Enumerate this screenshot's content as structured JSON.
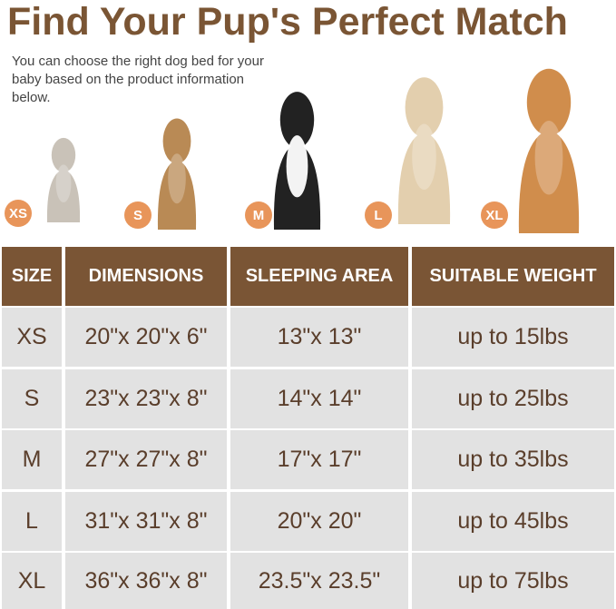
{
  "title": "Find Your Pup's Perfect Match",
  "subtitle": "You can choose the right dog bed for your baby based on the product information below.",
  "pets": [
    {
      "size": "XS",
      "animal": "cat",
      "color": "#c9c2b8"
    },
    {
      "size": "S",
      "animal": "french-bulldog",
      "color": "#b98a55"
    },
    {
      "size": "M",
      "animal": "border-collie",
      "color": "#222222"
    },
    {
      "size": "L",
      "animal": "golden-retriever-light",
      "color": "#e3cfae"
    },
    {
      "size": "XL",
      "animal": "golden-retriever",
      "color": "#d08d4c"
    }
  ],
  "colors": {
    "brand": "#7a5535",
    "badge": "#e8955a",
    "row": "#e2e2e2",
    "text": "#5a3e2b"
  },
  "table": {
    "headers": [
      "SIZE",
      "DIMENSIONS",
      "SLEEPING AREA",
      "SUITABLE WEIGHT"
    ],
    "rows": [
      [
        "XS",
        "20\"x 20\"x 6\"",
        "13\"x 13\"",
        "up to 15lbs"
      ],
      [
        "S",
        "23\"x 23\"x 8\"",
        "14\"x 14\"",
        "up to 25lbs"
      ],
      [
        "M",
        "27\"x 27\"x 8\"",
        "17\"x 17\"",
        "up to 35lbs"
      ],
      [
        "L",
        "31\"x 31\"x 8\"",
        "20\"x 20\"",
        "up to 45lbs"
      ],
      [
        "XL",
        "36\"x 36\"x 8\"",
        "23.5\"x 23.5\"",
        "up to 75lbs"
      ]
    ]
  }
}
